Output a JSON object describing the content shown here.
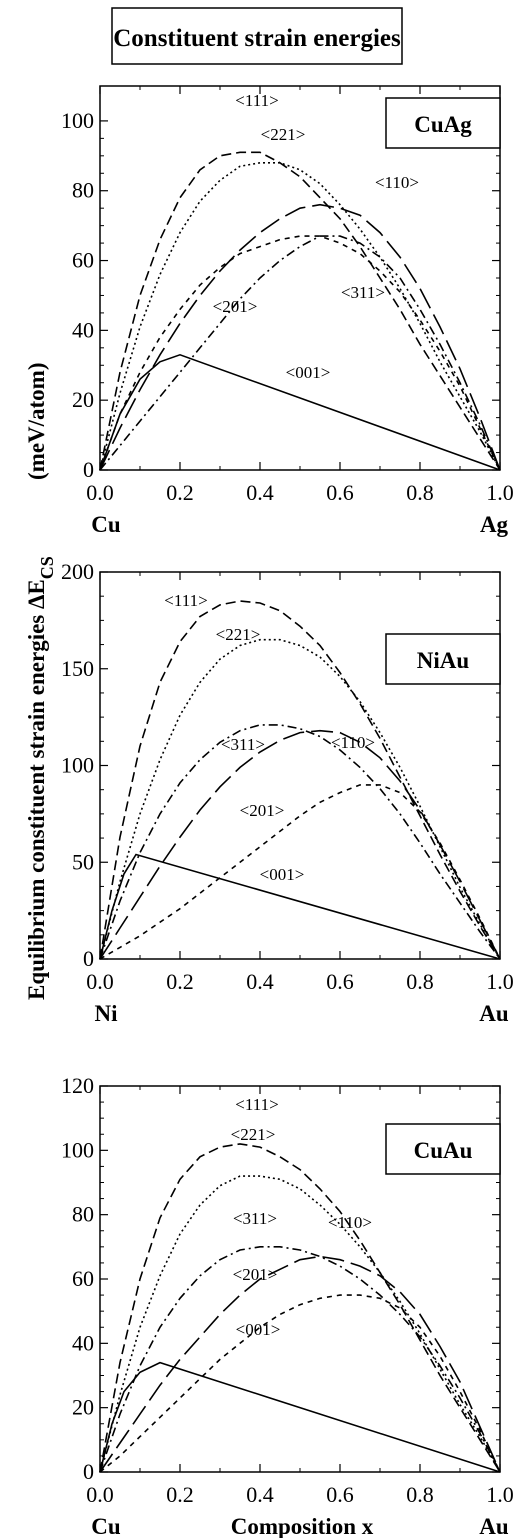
{
  "figure": {
    "title": "Constituent strain energies",
    "ylabel_main": "Equilibrium constituent strain energies ΔE",
    "ylabel_sub": "CS",
    "ylabel_unit": "(meV/atom)",
    "xlabel": "Composition x"
  },
  "chart_data": [
    {
      "type": "line",
      "system": "CuAg",
      "left_element": "Cu",
      "right_element": "Ag",
      "xlabel": "",
      "xlim": [
        0,
        1
      ],
      "ylim": [
        0,
        110
      ],
      "xticks": [
        "0.0",
        "0.2",
        "0.4",
        "0.6",
        "0.8",
        "1.0"
      ],
      "yticks": [
        "0",
        "20",
        "40",
        "60",
        "80",
        "100"
      ],
      "series": [
        {
          "name": "<001>",
          "x": [
            0,
            0.05,
            0.1,
            0.15,
            0.2,
            1.0
          ],
          "y": [
            0,
            16,
            26,
            31,
            33,
            0
          ]
        },
        {
          "name": "<111>",
          "x": [
            0,
            0.05,
            0.1,
            0.15,
            0.2,
            0.25,
            0.3,
            0.35,
            0.4,
            0.45,
            0.5,
            0.55,
            0.6,
            0.65,
            0.7,
            0.75,
            0.8,
            0.85,
            0.9,
            0.95,
            1.0
          ],
          "y": [
            0,
            28,
            50,
            66,
            78,
            86,
            90,
            91,
            91,
            88,
            84,
            78,
            72,
            64,
            55,
            46,
            36,
            27,
            18,
            9,
            0
          ]
        },
        {
          "name": "<221>",
          "x": [
            0,
            0.05,
            0.1,
            0.15,
            0.2,
            0.25,
            0.3,
            0.35,
            0.4,
            0.45,
            0.5,
            0.55,
            0.6,
            0.65,
            0.7,
            0.75,
            0.8,
            0.85,
            0.9,
            0.95,
            1.0
          ],
          "y": [
            0,
            22,
            41,
            56,
            68,
            77,
            83,
            87,
            88,
            88,
            86,
            82,
            76,
            69,
            61,
            52,
            42,
            31,
            21,
            11,
            0
          ]
        },
        {
          "name": "<110>",
          "x": [
            0,
            0.05,
            0.1,
            0.15,
            0.2,
            0.25,
            0.3,
            0.35,
            0.4,
            0.45,
            0.5,
            0.55,
            0.6,
            0.65,
            0.7,
            0.75,
            0.8,
            0.85,
            0.9,
            0.95,
            1.0
          ],
          "y": [
            0,
            12,
            23,
            33,
            42,
            50,
            57,
            63,
            68,
            72,
            75,
            76,
            75,
            73,
            68,
            61,
            52,
            41,
            29,
            15,
            0
          ]
        },
        {
          "name": "<201>",
          "x": [
            0,
            0.05,
            0.1,
            0.15,
            0.2,
            0.25,
            0.3,
            0.35,
            0.4,
            0.45,
            0.5,
            0.55,
            0.6,
            0.65,
            0.7,
            0.75,
            0.8,
            0.85,
            0.9,
            0.95,
            1.0
          ],
          "y": [
            0,
            16,
            28,
            38,
            46,
            53,
            58,
            62,
            64,
            66,
            67,
            67,
            65,
            62,
            57,
            51,
            43,
            34,
            24,
            12,
            0
          ]
        },
        {
          "name": "<311>",
          "x": [
            0,
            0.05,
            0.1,
            0.15,
            0.2,
            0.25,
            0.3,
            0.35,
            0.4,
            0.45,
            0.5,
            0.55,
            0.6,
            0.65,
            0.7,
            0.75,
            0.8,
            0.85,
            0.9,
            0.95,
            1.0
          ],
          "y": [
            0,
            7,
            14,
            21,
            28,
            35,
            42,
            49,
            55,
            60,
            64,
            67,
            67,
            65,
            61,
            55,
            46,
            36,
            25,
            13,
            0
          ]
        }
      ],
      "annotations": [
        "<111>",
        "<221>",
        "<110>",
        "<201>",
        "<311>",
        "<001>"
      ]
    },
    {
      "type": "line",
      "system": "NiAu",
      "left_element": "Ni",
      "right_element": "Au",
      "xlabel": "",
      "xlim": [
        0,
        1
      ],
      "ylim": [
        0,
        200
      ],
      "xticks": [
        "0.0",
        "0.2",
        "0.4",
        "0.6",
        "0.8",
        "1.0"
      ],
      "yticks": [
        "0",
        "50",
        "100",
        "150",
        "200"
      ],
      "series": [
        {
          "name": "<001>",
          "x": [
            0,
            0.03,
            0.06,
            0.09,
            1.0
          ],
          "y": [
            0,
            25,
            44,
            54,
            0
          ]
        },
        {
          "name": "<111>",
          "x": [
            0,
            0.05,
            0.1,
            0.15,
            0.2,
            0.25,
            0.3,
            0.35,
            0.4,
            0.45,
            0.5,
            0.55,
            0.6,
            0.65,
            0.7,
            0.75,
            0.8,
            0.85,
            0.9,
            0.95,
            1.0
          ],
          "y": [
            0,
            63,
            110,
            143,
            164,
            177,
            183,
            185,
            184,
            180,
            172,
            162,
            148,
            132,
            114,
            94,
            74,
            54,
            35,
            17,
            0
          ]
        },
        {
          "name": "<221>",
          "x": [
            0,
            0.05,
            0.1,
            0.15,
            0.2,
            0.25,
            0.3,
            0.35,
            0.4,
            0.45,
            0.5,
            0.55,
            0.6,
            0.65,
            0.7,
            0.75,
            0.8,
            0.85,
            0.9,
            0.95,
            1.0
          ],
          "y": [
            0,
            40,
            75,
            103,
            126,
            143,
            155,
            162,
            165,
            165,
            162,
            156,
            146,
            133,
            117,
            99,
            79,
            58,
            37,
            18,
            0
          ]
        },
        {
          "name": "<311>",
          "x": [
            0,
            0.05,
            0.1,
            0.15,
            0.2,
            0.25,
            0.3,
            0.35,
            0.4,
            0.45,
            0.5,
            0.55,
            0.6,
            0.65,
            0.7,
            0.75,
            0.8,
            0.85,
            0.9,
            0.95,
            1.0
          ],
          "y": [
            0,
            30,
            55,
            75,
            91,
            103,
            112,
            118,
            121,
            121,
            119,
            115,
            108,
            99,
            88,
            75,
            60,
            44,
            29,
            14,
            0
          ]
        },
        {
          "name": "<110>",
          "x": [
            0,
            0.05,
            0.1,
            0.15,
            0.2,
            0.25,
            0.3,
            0.35,
            0.4,
            0.45,
            0.5,
            0.55,
            0.6,
            0.65,
            0.7,
            0.75,
            0.8,
            0.85,
            0.9,
            0.95,
            1.0
          ],
          "y": [
            0,
            16,
            32,
            48,
            63,
            77,
            89,
            99,
            107,
            113,
            117,
            118,
            117,
            112,
            104,
            92,
            77,
            59,
            40,
            20,
            0
          ]
        },
        {
          "name": "<201>",
          "x": [
            0,
            0.05,
            0.1,
            0.15,
            0.2,
            0.25,
            0.3,
            0.35,
            0.4,
            0.45,
            0.5,
            0.55,
            0.6,
            0.65,
            0.7,
            0.75,
            0.8,
            0.85,
            0.9,
            0.95,
            1.0
          ],
          "y": [
            0,
            6,
            12,
            19,
            26,
            34,
            42,
            50,
            58,
            66,
            74,
            81,
            86,
            90,
            90,
            86,
            76,
            60,
            41,
            21,
            0
          ]
        }
      ],
      "annotations": [
        "<111>",
        "<221>",
        "<311>",
        "<110>",
        "<201>",
        "<001>"
      ]
    },
    {
      "type": "line",
      "system": "CuAu",
      "left_element": "Cu",
      "right_element": "Au",
      "xlabel": "Composition x",
      "xlim": [
        0,
        1
      ],
      "ylim": [
        0,
        120
      ],
      "xticks": [
        "0.0",
        "0.2",
        "0.4",
        "0.6",
        "0.8",
        "1.0"
      ],
      "yticks": [
        "0",
        "20",
        "40",
        "60",
        "80",
        "100",
        "120"
      ],
      "series": [
        {
          "name": "<001>",
          "x": [
            0,
            0.03,
            0.06,
            0.1,
            0.15,
            1.0
          ],
          "y": [
            0,
            15,
            25,
            31,
            34,
            0
          ]
        },
        {
          "name": "<111>",
          "x": [
            0,
            0.05,
            0.1,
            0.15,
            0.2,
            0.25,
            0.3,
            0.35,
            0.4,
            0.45,
            0.5,
            0.55,
            0.6,
            0.65,
            0.7,
            0.75,
            0.8,
            0.85,
            0.9,
            0.95,
            1.0
          ],
          "y": [
            0,
            34,
            60,
            79,
            91,
            98,
            101,
            102,
            101,
            98,
            94,
            88,
            81,
            72,
            62,
            52,
            41,
            30,
            20,
            10,
            0
          ]
        },
        {
          "name": "<221>",
          "x": [
            0,
            0.05,
            0.1,
            0.15,
            0.2,
            0.25,
            0.3,
            0.35,
            0.4,
            0.45,
            0.5,
            0.55,
            0.6,
            0.65,
            0.7,
            0.75,
            0.8,
            0.85,
            0.9,
            0.95,
            1.0
          ],
          "y": [
            0,
            24,
            45,
            61,
            74,
            83,
            89,
            92,
            92,
            91,
            88,
            83,
            77,
            70,
            62,
            53,
            43,
            32,
            21,
            11,
            0
          ]
        },
        {
          "name": "<311>",
          "x": [
            0,
            0.05,
            0.1,
            0.15,
            0.2,
            0.25,
            0.3,
            0.35,
            0.4,
            0.45,
            0.5,
            0.55,
            0.6,
            0.65,
            0.7,
            0.75,
            0.8,
            0.85,
            0.9,
            0.95,
            1.0
          ],
          "y": [
            0,
            18,
            33,
            45,
            54,
            61,
            66,
            69,
            70,
            70,
            69,
            67,
            64,
            60,
            55,
            49,
            42,
            33,
            23,
            12,
            0
          ]
        },
        {
          "name": "<110>",
          "x": [
            0,
            0.05,
            0.1,
            0.15,
            0.2,
            0.25,
            0.3,
            0.35,
            0.4,
            0.45,
            0.5,
            0.55,
            0.6,
            0.65,
            0.7,
            0.75,
            0.8,
            0.85,
            0.9,
            0.95,
            1.0
          ],
          "y": [
            0,
            9,
            18,
            27,
            35,
            42,
            49,
            55,
            60,
            63,
            66,
            67,
            66,
            64,
            61,
            56,
            49,
            39,
            28,
            14,
            0
          ]
        },
        {
          "name": "<201>",
          "x": [
            0,
            0.05,
            0.1,
            0.15,
            0.2,
            0.25,
            0.3,
            0.35,
            0.4,
            0.45,
            0.5,
            0.55,
            0.6,
            0.65,
            0.7,
            0.75,
            0.8,
            0.85,
            0.9,
            0.95,
            1.0
          ],
          "y": [
            0,
            5,
            11,
            17,
            23,
            29,
            35,
            40,
            45,
            49,
            52,
            54,
            55,
            55,
            54,
            51,
            45,
            36,
            25,
            13,
            0
          ]
        }
      ],
      "annotations": [
        "<111>",
        "<221>",
        "<311>",
        "<110>",
        "<201>",
        "<001>"
      ]
    }
  ]
}
